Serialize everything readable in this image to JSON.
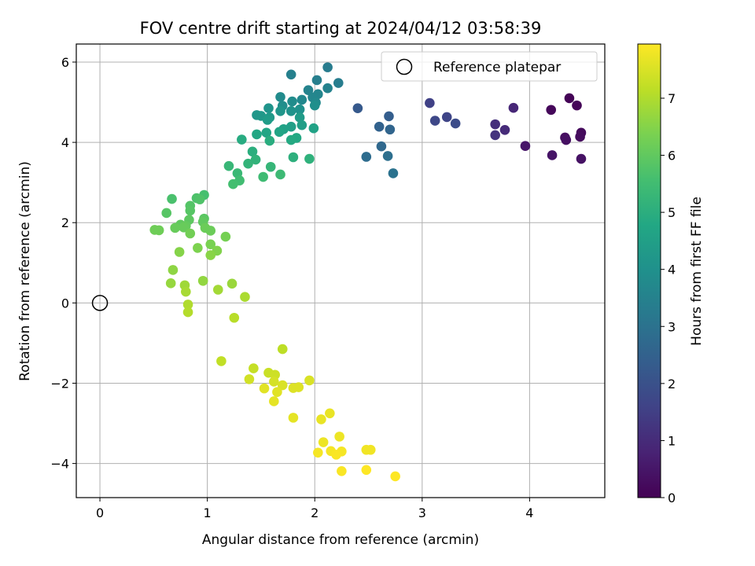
{
  "chart_data": {
    "type": "scatter",
    "title": "FOV centre drift starting at 2024/04/12 03:58:39",
    "xlabel": "Angular distance from reference (arcmin)",
    "ylabel": "Rotation from reference (arcmin)",
    "xlim": [
      -0.22,
      4.7
    ],
    "ylim": [
      -4.85,
      6.45
    ],
    "x_ticks": [
      0,
      1,
      2,
      3,
      4
    ],
    "y_ticks": [
      -4,
      -2,
      0,
      2,
      4,
      6
    ],
    "grid": true,
    "legend": {
      "position": "top-right",
      "entries": [
        "Reference platepar"
      ]
    },
    "reference_point": {
      "x": 0,
      "y": 0,
      "label": "Reference platepar"
    },
    "colorbar": {
      "label": "Hours from first FF file",
      "colormap": "viridis",
      "range": [
        0,
        7.95
      ],
      "ticks": [
        0,
        1,
        2,
        3,
        4,
        5,
        6,
        7
      ]
    },
    "points": [
      [
        4.37,
        5.1,
        0.05
      ],
      [
        4.44,
        4.92,
        0.1
      ],
      [
        4.2,
        4.81,
        0.15
      ],
      [
        4.48,
        4.24,
        0.2
      ],
      [
        4.47,
        4.14,
        0.25
      ],
      [
        4.33,
        4.12,
        0.3
      ],
      [
        4.34,
        4.06,
        0.35
      ],
      [
        4.48,
        3.59,
        0.4
      ],
      [
        4.21,
        3.68,
        0.45
      ],
      [
        3.96,
        3.91,
        0.5
      ],
      [
        3.85,
        4.86,
        0.9
      ],
      [
        3.77,
        4.31,
        1.0
      ],
      [
        3.68,
        4.45,
        1.1
      ],
      [
        3.68,
        4.18,
        1.2
      ],
      [
        3.07,
        4.98,
        1.55
      ],
      [
        3.23,
        4.63,
        1.65
      ],
      [
        3.12,
        4.54,
        1.75
      ],
      [
        3.31,
        4.47,
        1.85
      ],
      [
        2.4,
        4.85,
        2.25
      ],
      [
        2.69,
        4.65,
        2.4
      ],
      [
        2.6,
        4.39,
        2.5
      ],
      [
        2.7,
        4.32,
        2.6
      ],
      [
        2.62,
        3.9,
        2.7
      ],
      [
        2.48,
        3.64,
        2.8
      ],
      [
        2.68,
        3.66,
        2.9
      ],
      [
        2.73,
        3.23,
        3.0
      ],
      [
        2.12,
        5.87,
        3.3
      ],
      [
        2.22,
        5.48,
        3.35
      ],
      [
        2.02,
        5.55,
        3.4
      ],
      [
        1.78,
        5.69,
        3.45
      ],
      [
        2.12,
        5.35,
        3.5
      ],
      [
        1.94,
        5.3,
        3.55
      ],
      [
        2.03,
        5.2,
        3.6
      ],
      [
        1.98,
        5.12,
        3.65
      ],
      [
        1.88,
        5.06,
        3.7
      ],
      [
        2.01,
        4.99,
        3.75
      ],
      [
        1.68,
        5.13,
        3.8
      ],
      [
        1.79,
        5.02,
        3.85
      ],
      [
        1.7,
        4.91,
        3.9
      ],
      [
        2.0,
        4.92,
        3.95
      ],
      [
        1.86,
        4.82,
        4.0
      ],
      [
        1.78,
        4.78,
        4.05
      ],
      [
        1.57,
        4.85,
        4.1
      ],
      [
        1.68,
        4.78,
        4.15
      ],
      [
        1.46,
        4.68,
        4.2
      ],
      [
        1.5,
        4.66,
        4.25
      ],
      [
        1.58,
        4.62,
        4.3
      ],
      [
        1.86,
        4.62,
        4.35
      ],
      [
        1.56,
        4.56,
        4.4
      ],
      [
        1.88,
        4.43,
        4.45
      ],
      [
        1.78,
        4.39,
        4.5
      ],
      [
        1.71,
        4.33,
        4.55
      ],
      [
        1.99,
        4.35,
        4.6
      ],
      [
        1.67,
        4.26,
        4.65
      ],
      [
        1.55,
        4.24,
        4.7
      ],
      [
        1.46,
        4.2,
        4.75
      ],
      [
        1.83,
        4.11,
        4.8
      ],
      [
        1.78,
        4.06,
        4.85
      ],
      [
        1.32,
        4.07,
        4.9
      ],
      [
        1.58,
        4.04,
        4.95
      ],
      [
        1.42,
        3.77,
        5.0
      ],
      [
        1.8,
        3.63,
        5.05
      ],
      [
        1.95,
        3.59,
        5.1
      ],
      [
        1.45,
        3.57,
        5.15
      ],
      [
        1.38,
        3.47,
        5.2
      ],
      [
        1.59,
        3.39,
        5.25
      ],
      [
        1.2,
        3.41,
        5.3
      ],
      [
        1.28,
        3.23,
        5.35
      ],
      [
        1.68,
        3.2,
        5.4
      ],
      [
        1.52,
        3.14,
        5.45
      ],
      [
        1.3,
        3.05,
        5.5
      ],
      [
        1.24,
        2.96,
        5.55
      ],
      [
        0.97,
        2.69,
        5.6
      ],
      [
        0.67,
        2.59,
        5.65
      ],
      [
        0.9,
        2.61,
        5.7
      ],
      [
        0.93,
        2.58,
        5.75
      ],
      [
        0.84,
        2.42,
        5.8
      ],
      [
        0.84,
        2.3,
        5.85
      ],
      [
        0.62,
        2.24,
        5.85
      ],
      [
        0.97,
        2.1,
        5.9
      ],
      [
        0.83,
        2.07,
        5.95
      ],
      [
        0.96,
        2.02,
        6.0
      ],
      [
        0.75,
        1.95,
        6.0
      ],
      [
        0.8,
        1.92,
        6.05
      ],
      [
        0.7,
        1.87,
        6.1
      ],
      [
        0.78,
        1.88,
        6.1
      ],
      [
        0.98,
        1.87,
        6.15
      ],
      [
        1.03,
        1.8,
        6.15
      ],
      [
        0.51,
        1.82,
        6.2
      ],
      [
        0.55,
        1.81,
        6.2
      ],
      [
        0.84,
        1.73,
        6.25
      ],
      [
        1.17,
        1.65,
        6.3
      ],
      [
        1.03,
        1.46,
        6.35
      ],
      [
        0.91,
        1.37,
        6.4
      ],
      [
        1.09,
        1.3,
        6.45
      ],
      [
        0.74,
        1.27,
        6.5
      ],
      [
        1.03,
        1.19,
        6.55
      ],
      [
        0.68,
        0.82,
        6.6
      ],
      [
        0.96,
        0.55,
        6.65
      ],
      [
        0.66,
        0.49,
        6.7
      ],
      [
        1.23,
        0.48,
        6.75
      ],
      [
        0.79,
        0.44,
        6.8
      ],
      [
        1.1,
        0.33,
        6.85
      ],
      [
        0.8,
        0.28,
        6.9
      ],
      [
        1.35,
        0.15,
        6.95
      ],
      [
        0.82,
        -0.04,
        7.0
      ],
      [
        0.82,
        -0.23,
        7.05
      ],
      [
        1.25,
        -0.37,
        7.1
      ],
      [
        1.7,
        -1.15,
        7.15
      ],
      [
        1.13,
        -1.45,
        7.2
      ],
      [
        1.43,
        -1.63,
        7.25
      ],
      [
        1.57,
        -1.74,
        7.3
      ],
      [
        1.63,
        -1.79,
        7.35
      ],
      [
        1.39,
        -1.9,
        7.4
      ],
      [
        1.62,
        -1.96,
        7.45
      ],
      [
        1.95,
        -1.93,
        7.5
      ],
      [
        1.7,
        -2.05,
        7.5
      ],
      [
        1.8,
        -2.12,
        7.55
      ],
      [
        1.85,
        -2.1,
        7.55
      ],
      [
        1.53,
        -2.13,
        7.6
      ],
      [
        1.65,
        -2.22,
        7.6
      ],
      [
        1.62,
        -2.45,
        7.65
      ],
      [
        1.8,
        -2.86,
        7.65
      ],
      [
        2.14,
        -2.75,
        7.7
      ],
      [
        2.06,
        -2.9,
        7.7
      ],
      [
        2.23,
        -3.33,
        7.75
      ],
      [
        2.08,
        -3.47,
        7.75
      ],
      [
        2.48,
        -3.66,
        7.8
      ],
      [
        2.52,
        -3.66,
        7.8
      ],
      [
        2.03,
        -3.73,
        7.85
      ],
      [
        2.15,
        -3.69,
        7.85
      ],
      [
        2.25,
        -3.7,
        7.85
      ],
      [
        2.2,
        -3.78,
        7.9
      ],
      [
        2.25,
        -4.19,
        7.9
      ],
      [
        2.48,
        -4.16,
        7.95
      ],
      [
        2.75,
        -4.32,
        7.95
      ]
    ]
  }
}
